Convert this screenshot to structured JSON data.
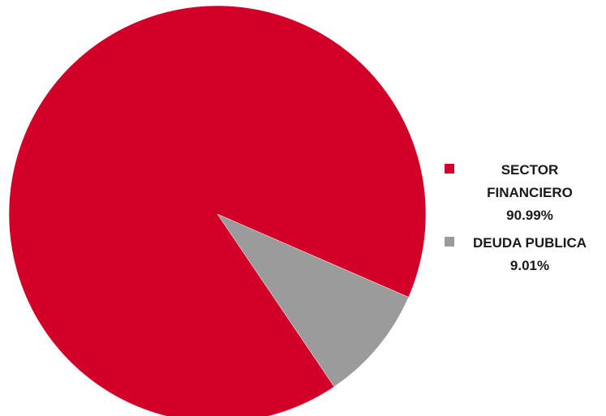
{
  "chart_data": {
    "type": "pie",
    "title": "",
    "categories": [
      "SECTOR FINANCIERO",
      "DEUDA PUBLICA"
    ],
    "values": [
      90.99,
      9.01
    ],
    "value_labels": [
      "90.99%",
      "9.01%"
    ],
    "colors": [
      "#d20028",
      "#9b9b9b"
    ],
    "legend_position": "right",
    "grid": false
  }
}
